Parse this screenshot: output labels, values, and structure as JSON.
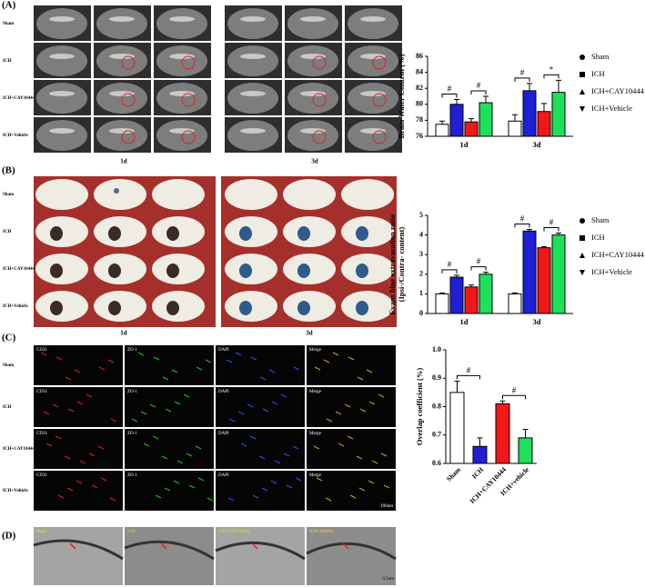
{
  "panel_labels": [
    "(A)",
    "(B)",
    "(C)",
    "(D)"
  ],
  "panel_a": {
    "row_labels": [
      "Sham",
      "ICH",
      "ICH+CAY10444",
      "ICH+Vehicle"
    ],
    "time_labels": [
      "1d",
      "3d"
    ]
  },
  "panel_b": {
    "row_labels": [
      "Sham",
      "ICH",
      "ICH+CAY10444",
      "ICH+Vehicle"
    ],
    "time_labels": [
      "1d",
      "3d"
    ]
  },
  "panel_c": {
    "row_labels": [
      "Sham",
      "ICH",
      "ICH+CAY10444",
      "ICH+Vehicle"
    ],
    "stain_labels": [
      "CD31",
      "ZO-1",
      "DAPI",
      "Merge"
    ],
    "scale_bar": "100um"
  },
  "panel_d": {
    "labels": [
      "Sham",
      "ICH",
      "ICH+CAY10444",
      "ICH+Vehicle"
    ],
    "scale_bar": "0.2um"
  },
  "chart_data": [
    {
      "type": "bar",
      "y_label": "Brain Water Content (%)",
      "categories": [
        "1d",
        "3d"
      ],
      "series": [
        {
          "name": "Sham",
          "color": "#ffffff",
          "marker": "circle",
          "values": [
            77.5,
            77.9
          ],
          "errors": [
            0.4,
            0.8
          ]
        },
        {
          "name": "ICH",
          "color": "#1f1fd6",
          "marker": "square",
          "values": [
            80,
            81.7
          ],
          "errors": [
            0.6,
            0.9
          ]
        },
        {
          "name": "ICH+CAY10444",
          "color": "#f01818",
          "marker": "triangle",
          "values": [
            77.8,
            79.1
          ],
          "errors": [
            0.4,
            1.0
          ]
        },
        {
          "name": "ICH+Vehicle",
          "color": "#1ee05a",
          "marker": "triangle-down",
          "values": [
            80.2,
            81.5
          ],
          "errors": [
            0.8,
            1.5
          ]
        }
      ],
      "ylim": [
        76,
        86
      ],
      "yticks": [
        76,
        78,
        80,
        82,
        84,
        86
      ],
      "annotations": [
        "#",
        "#",
        "#",
        "*"
      ]
    },
    {
      "type": "bar",
      "y_label": [
        "Evans blue extravasation ratio",
        "(Ipsi-/Contra- content)"
      ],
      "categories": [
        "1d",
        "3d"
      ],
      "series": [
        {
          "name": "Sham",
          "color": "#ffffff",
          "marker": "circle",
          "values": [
            1.0,
            1.0
          ],
          "errors": [
            0.05,
            0.05
          ]
        },
        {
          "name": "ICH",
          "color": "#1f1fd6",
          "marker": "square",
          "values": [
            1.85,
            4.2
          ],
          "errors": [
            0.1,
            0.08
          ]
        },
        {
          "name": "ICH+CAY10444",
          "color": "#f01818",
          "marker": "triangle",
          "values": [
            1.35,
            3.35
          ],
          "errors": [
            0.1,
            0.06
          ]
        },
        {
          "name": "ICH+Vehicle",
          "color": "#1ee05a",
          "marker": "triangle-down",
          "values": [
            2.0,
            4.0
          ],
          "errors": [
            0.1,
            0.1
          ]
        }
      ],
      "ylim": [
        0,
        5
      ],
      "yticks": [
        0,
        1,
        2,
        3,
        4,
        5
      ],
      "annotations": [
        "#",
        "#",
        "#",
        "#"
      ]
    },
    {
      "type": "bar",
      "y_label": "Overlap coefficient (%)",
      "categories": [
        "Sham",
        "ICH",
        "ICH+CAY10444",
        "ICH+vehicle"
      ],
      "values": [
        0.85,
        0.66,
        0.81,
        0.69
      ],
      "errors": [
        0.04,
        0.03,
        0.01,
        0.03
      ],
      "colors": [
        "#ffffff",
        "#1f1fd6",
        "#f01818",
        "#1ee05a"
      ],
      "ylim": [
        0.6,
        1.0
      ],
      "yticks": [
        0.6,
        0.7,
        0.8,
        0.9,
        {
          "value": 1.0,
          "label": "1.0"
        }
      ],
      "annotations": [
        "#",
        "#"
      ]
    }
  ]
}
